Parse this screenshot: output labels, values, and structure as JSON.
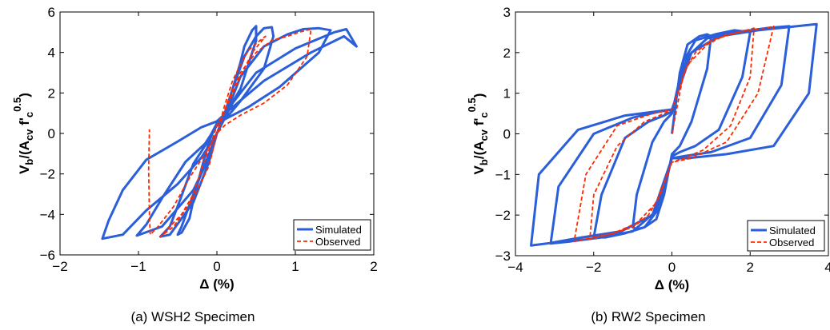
{
  "chart_data": [
    {
      "type": "line",
      "caption": "(a)  WSH2 Specimen",
      "xlabel": "Δ (%)",
      "ylabel": "V_b/(A_cv f'_c^0.5)",
      "xlim": [
        -2,
        2
      ],
      "ylim": [
        -6,
        6
      ],
      "xticks": [
        -2,
        -1,
        0,
        1,
        2
      ],
      "yticks": [
        -6,
        -4,
        -2,
        0,
        2,
        4,
        6
      ],
      "xtick_labels": [
        "−2",
        "−1",
        "0",
        "1",
        "2"
      ],
      "ytick_labels": [
        "−6",
        "−4",
        "−2",
        "0",
        "2",
        "4",
        "6"
      ],
      "grid": false,
      "legend_position": "bottom-right",
      "series": [
        {
          "name": "Simulated",
          "color": "#2b5fd9",
          "style": "solid",
          "x": [
            0,
            0.1,
            0.2,
            0.3,
            0.35,
            0.45,
            0.5,
            0.5,
            0.3,
            0.1,
            0,
            -0.1,
            -0.2,
            -0.3,
            -0.35,
            -0.45,
            -0.5,
            -0.45,
            -0.3,
            -0.15,
            0,
            0.1,
            0.2,
            0.35,
            0.5,
            0.6,
            0.7,
            0.72,
            0.6,
            0.3,
            0.15,
            0,
            -0.15,
            -0.3,
            -0.5,
            -0.6,
            -0.72,
            -0.6,
            -0.3,
            -0.1,
            0,
            0.15,
            0.3,
            0.6,
            0.9,
            1.1,
            1.3,
            1.45,
            1.3,
            0.8,
            0.4,
            0.1,
            0,
            -0.15,
            -0.4,
            -0.7,
            -0.9,
            -1.02,
            -0.7,
            -0.3,
            -0.1,
            0,
            0.2,
            0.5,
            1.0,
            1.5,
            1.65,
            1.78,
            1.62,
            1.2,
            0.6,
            0.2,
            0,
            -0.2,
            -0.5,
            -0.9,
            -1.2,
            -1.38,
            -1.46,
            -1.2,
            -0.9,
            -0.5,
            -0.2,
            0
          ],
          "y": [
            0,
            1.0,
            2.2,
            3.5,
            4.3,
            5.1,
            5.3,
            4.6,
            2.2,
            0.9,
            0.5,
            -0.4,
            -1.8,
            -3.3,
            -4.2,
            -4.9,
            -5.0,
            -4.6,
            -3.0,
            -1.5,
            0,
            1.0,
            2.2,
            3.8,
            4.8,
            5.2,
            5.25,
            4.8,
            3.2,
            1.6,
            0.9,
            0.5,
            -0.6,
            -1.5,
            -3.6,
            -4.6,
            -5.1,
            -5.0,
            -3.4,
            -1.4,
            0,
            1.3,
            2.8,
            4.3,
            4.9,
            5.15,
            5.2,
            5.1,
            4.0,
            2.3,
            1.3,
            0.7,
            0.4,
            -0.5,
            -1.4,
            -3.2,
            -4.5,
            -5.05,
            -4.6,
            -2.8,
            -1.2,
            0,
            1.5,
            3.0,
            4.2,
            5.0,
            5.15,
            4.3,
            4.8,
            4.0,
            2.6,
            1.3,
            0.6,
            0.3,
            -0.4,
            -1.3,
            -2.8,
            -4.3,
            -5.2,
            -5.0,
            -3.8,
            -2.5,
            -1.2,
            0
          ]
        },
        {
          "name": "Observed",
          "color": "#ff2a00",
          "style": "dashed",
          "x": [
            0,
            0.1,
            0.2,
            0.3,
            0.4,
            0.55,
            0.62,
            0.45,
            0.25,
            0.1,
            0,
            -0.1,
            -0.2,
            -0.3,
            -0.45,
            -0.6,
            -0.72,
            -0.55,
            -0.3,
            -0.1,
            0,
            0.15,
            0.3,
            0.5,
            0.7,
            0.9,
            1.05,
            1.2,
            1.15,
            0.9,
            0.6,
            0.3,
            0.1,
            0,
            -0.15,
            -0.35,
            -0.55,
            -0.75,
            -0.85,
            -0.86,
            -0.87,
            -0.86
          ],
          "y": [
            0,
            1.4,
            2.6,
            3.4,
            4.1,
            4.6,
            4.8,
            4.0,
            2.4,
            1.1,
            0.4,
            -0.8,
            -1.8,
            -3.0,
            -4.0,
            -4.6,
            -5.1,
            -4.6,
            -3.2,
            -1.6,
            0,
            1.7,
            3.0,
            4.0,
            4.6,
            4.8,
            5.0,
            5.15,
            3.8,
            2.4,
            1.5,
            0.9,
            0.4,
            0,
            -1.0,
            -2.2,
            -3.6,
            -4.6,
            -5.0,
            -4.0,
            -1.8,
            0.2
          ]
        }
      ]
    },
    {
      "type": "line",
      "caption": "(b)  RW2 Specimen",
      "xlabel": "Δ (%)",
      "ylabel": "V_b/(A_cv f'_c^0.5)",
      "xlim": [
        -4,
        4
      ],
      "ylim": [
        -3,
        3
      ],
      "xticks": [
        -4,
        -2,
        0,
        2,
        4
      ],
      "yticks": [
        -3,
        -2,
        -1,
        0,
        1,
        2,
        3
      ],
      "xtick_labels": [
        "−4",
        "−2",
        "0",
        "2",
        "4"
      ],
      "ytick_labels": [
        "−3",
        "−2",
        "−1",
        "0",
        "1",
        "2",
        "3"
      ],
      "grid": false,
      "legend_position": "bottom-right",
      "series": [
        {
          "name": "Simulated",
          "color": "#2b5fd9",
          "style": "solid",
          "x": [
            0,
            0.2,
            0.4,
            0.7,
            0.9,
            1.0,
            0.9,
            0.5,
            0.2,
            0,
            -0.2,
            -0.4,
            -0.7,
            -0.9,
            -1.0,
            -0.9,
            -0.5,
            -0.2,
            0,
            0.3,
            0.6,
            1.1,
            1.6,
            2.0,
            1.8,
            1.2,
            0.6,
            0.2,
            0,
            -0.3,
            -0.7,
            -1.2,
            -1.7,
            -2.0,
            -1.8,
            -1.2,
            -0.6,
            -0.2,
            0,
            0.4,
            0.9,
            1.6,
            2.4,
            3.0,
            2.8,
            2.0,
            1.0,
            0.3,
            0,
            -0.4,
            -1.0,
            -1.8,
            -2.6,
            -3.1,
            -2.9,
            -2.0,
            -1.0,
            -0.3,
            0,
            0.5,
            1.2,
            2.2,
            3.2,
            3.7,
            3.5,
            2.6,
            1.4,
            0.4,
            0,
            -0.5,
            -1.3,
            -2.3,
            -3.2,
            -3.6,
            -3.4,
            -2.4,
            -1.2,
            -0.4,
            0
          ],
          "y": [
            0,
            1.5,
            2.2,
            2.4,
            2.45,
            2.4,
            1.6,
            0.3,
            -0.3,
            -0.5,
            -1.5,
            -2.1,
            -2.3,
            -2.35,
            -2.3,
            -1.5,
            -0.2,
            0.3,
            0.5,
            1.8,
            2.3,
            2.45,
            2.55,
            2.5,
            1.4,
            0.1,
            -0.3,
            -0.45,
            -0.55,
            -1.8,
            -2.3,
            -2.45,
            -2.55,
            -2.55,
            -1.5,
            -0.1,
            0.3,
            0.45,
            0.55,
            1.9,
            2.35,
            2.5,
            2.6,
            2.65,
            1.2,
            -0.1,
            -0.45,
            -0.55,
            -0.6,
            -1.9,
            -2.4,
            -2.55,
            -2.65,
            -2.7,
            -1.3,
            0.0,
            0.4,
            0.55,
            0.6,
            2.0,
            2.4,
            2.55,
            2.65,
            2.7,
            1.0,
            -0.3,
            -0.5,
            -0.6,
            -0.6,
            -2.0,
            -2.4,
            -2.55,
            -2.7,
            -2.75,
            -1.0,
            0.1,
            0.45,
            0.55,
            0.6
          ]
        },
        {
          "name": "Observed",
          "color": "#ff2a00",
          "style": "dashed",
          "x": [
            0,
            0.3,
            0.6,
            1.0,
            1.5,
            1.9,
            2.1,
            2.0,
            1.5,
            0.8,
            0.3,
            0,
            -0.3,
            -0.6,
            -1.0,
            -1.5,
            -1.9,
            -2.1,
            -2.0,
            -1.4,
            -0.7,
            -0.2,
            0,
            0.4,
            0.9,
            1.4,
            2.0,
            2.4,
            2.6,
            2.2,
            1.4,
            0.5,
            0,
            -0.4,
            -0.9,
            -1.5,
            -2.0,
            -2.3,
            -2.5,
            -2.2,
            -1.4,
            -0.5,
            0
          ],
          "y": [
            0,
            1.5,
            2.0,
            2.3,
            2.45,
            2.55,
            2.6,
            1.4,
            0.2,
            -0.4,
            -0.6,
            -0.7,
            -1.5,
            -2.0,
            -2.3,
            -2.45,
            -2.55,
            -2.6,
            -1.5,
            -0.3,
            0.3,
            0.5,
            0.6,
            1.7,
            2.2,
            2.45,
            2.55,
            2.6,
            2.65,
            1.0,
            -0.2,
            -0.6,
            -0.7,
            -1.7,
            -2.2,
            -2.45,
            -2.55,
            -2.6,
            -2.65,
            -1.0,
            0.2,
            0.5,
            0.6
          ]
        }
      ]
    }
  ]
}
